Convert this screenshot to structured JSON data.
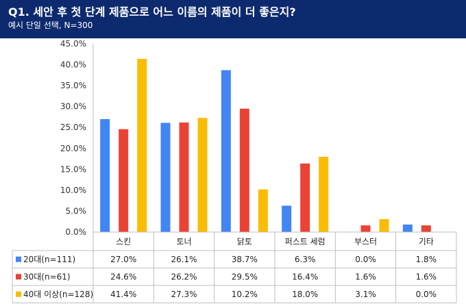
{
  "header": {
    "question": "Q1. 세안 후 첫 단계 제품으로 어느 이름의 제품이 더 좋은지?",
    "subtitle": "예시 단일 선택, N=300"
  },
  "colors": {
    "header_bg": "#0d2a6e",
    "series": [
      "#4285f4",
      "#ea4335",
      "#fbbc04"
    ]
  },
  "chart_data": {
    "type": "bar",
    "categories": [
      "스킨",
      "토너",
      "닭토",
      "퍼스트 세럼",
      "부스터",
      "기타"
    ],
    "series": [
      {
        "name": "20대(n=111)",
        "values": [
          27.0,
          26.1,
          38.7,
          6.3,
          0.0,
          1.8
        ],
        "labels": [
          "27.0%",
          "26.1%",
          "38.7%",
          "6.3%",
          "0.0%",
          "1.8%"
        ]
      },
      {
        "name": "30대(n=61)",
        "values": [
          24.6,
          26.2,
          29.5,
          16.4,
          1.6,
          1.6
        ],
        "labels": [
          "24.6%",
          "26.2%",
          "29.5%",
          "16.4%",
          "1.6%",
          "1.6%"
        ]
      },
      {
        "name": "40대 이상(n=128)",
        "values": [
          41.4,
          27.3,
          10.2,
          18.0,
          3.1,
          0.0
        ],
        "labels": [
          "41.4%",
          "27.3%",
          "10.2%",
          "18.0%",
          "3.1%",
          "0.0%"
        ]
      }
    ],
    "ylim": [
      0,
      45
    ],
    "yticks": [
      "0.0%",
      "5.0%",
      "10.0%",
      "15.0%",
      "20.0%",
      "25.0%",
      "30.0%",
      "35.0%",
      "40.0%",
      "45.0%"
    ],
    "grid": false,
    "data_table": true
  }
}
